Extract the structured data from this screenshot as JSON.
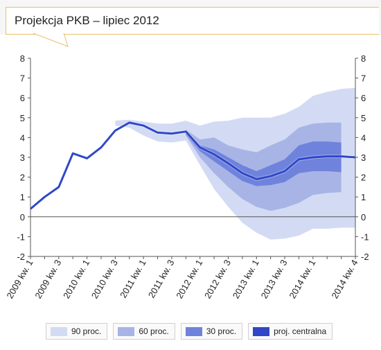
{
  "header": {
    "title": "Projekcja PKB – lipiec 2012"
  },
  "colors": {
    "band90": "#d3dbf4",
    "band60": "#a8b4e6",
    "band30": "#6f83dc",
    "central": "#3047c8",
    "axis": "#555555",
    "title_border": "#e3c26a"
  },
  "legend": {
    "items": [
      {
        "label": "90 proc.",
        "color": "#d3dbf4"
      },
      {
        "label": "60 proc.",
        "color": "#a8b4e6"
      },
      {
        "label": "30 proc.",
        "color": "#6f83dc"
      },
      {
        "label": "proj. centralna",
        "color": "#3047c8"
      }
    ]
  },
  "chart_data": {
    "type": "area",
    "title": "Projekcja PKB – lipiec 2012",
    "xlabel": "",
    "ylabel": "",
    "ylim": [
      -2,
      8
    ],
    "yticks": [
      -2,
      -1,
      0,
      1,
      2,
      3,
      4,
      5,
      6,
      7,
      8
    ],
    "grid": false,
    "legend_position": "bottom",
    "x_tick_labels": [
      "2009 kw. 1",
      "2009 kw. 3",
      "2010 kw. 1",
      "2010 kw. 3",
      "2011 kw. 1",
      "2011 kw. 3",
      "2012 kw. 1",
      "2012 kw. 3",
      "2013 kw. 1",
      "2013 kw. 3",
      "2014 kw. 1",
      "2014 kw. 4"
    ],
    "x_tick_index": [
      0,
      2,
      4,
      6,
      8,
      10,
      12,
      14,
      16,
      18,
      20,
      23
    ],
    "quarters": [
      "2009 kw. 1",
      "2009 kw. 2",
      "2009 kw. 3",
      "2009 kw. 4",
      "2010 kw. 1",
      "2010 kw. 2",
      "2010 kw. 3",
      "2010 kw. 4",
      "2011 kw. 1",
      "2011 kw. 2",
      "2011 kw. 3",
      "2011 kw. 4",
      "2012 kw. 1",
      "2012 kw. 2",
      "2012 kw. 3",
      "2012 kw. 4",
      "2013 kw. 1",
      "2013 kw. 2",
      "2013 kw. 3",
      "2013 kw. 4",
      "2014 kw. 1",
      "2014 kw. 2",
      "2014 kw. 3",
      "2014 kw. 4"
    ],
    "series": [
      {
        "name": "proj. centralna",
        "values": [
          0.4,
          1.0,
          1.5,
          3.2,
          2.95,
          3.5,
          4.35,
          4.75,
          4.6,
          4.25,
          4.2,
          4.3,
          3.5,
          3.15,
          2.7,
          2.2,
          1.9,
          2.05,
          2.3,
          2.9,
          3.0,
          3.05,
          3.05,
          3.0
        ]
      },
      {
        "name": "30 proc.",
        "start_index": 11,
        "lower": [
          4.15,
          3.3,
          2.8,
          2.3,
          1.8,
          1.55,
          1.6,
          1.75,
          2.2,
          2.3,
          2.3,
          2.25
        ],
        "upper": [
          4.35,
          3.6,
          3.4,
          3.0,
          2.6,
          2.3,
          2.6,
          2.9,
          3.6,
          3.8,
          3.8,
          3.75
        ]
      },
      {
        "name": "60 proc.",
        "start_index": 11,
        "lower": [
          4.1,
          3.0,
          2.2,
          1.5,
          0.9,
          0.5,
          0.3,
          0.45,
          0.7,
          1.1,
          1.2,
          1.25
        ],
        "upper": [
          4.4,
          3.9,
          4.0,
          3.6,
          3.4,
          3.25,
          3.6,
          3.9,
          4.5,
          4.7,
          4.75,
          4.75
        ]
      },
      {
        "name": "90 proc.",
        "start_index": 6,
        "lower": [
          4.6,
          4.5,
          4.1,
          3.8,
          3.75,
          3.85,
          2.6,
          1.4,
          0.5,
          -0.3,
          -0.8,
          -1.15,
          -1.1,
          -0.95,
          -0.6,
          -0.6,
          -0.55,
          -0.55
        ],
        "upper": [
          4.85,
          4.9,
          4.8,
          4.7,
          4.7,
          4.85,
          4.6,
          4.8,
          4.85,
          5.0,
          5.0,
          5.0,
          5.2,
          5.55,
          6.1,
          6.3,
          6.45,
          6.5
        ]
      }
    ]
  }
}
